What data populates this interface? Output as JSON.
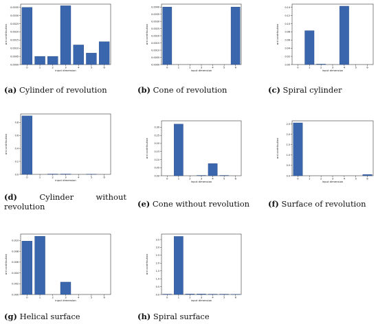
{
  "colors": {
    "bar": "#3a66ad",
    "bar_edge": "#24467e",
    "axis": "#333333",
    "text": "#111111"
  },
  "chart_data": [
    {
      "type": "bar",
      "caption_tag": "(a)",
      "caption_text": "Cylinder of revolution",
      "xlabel": "input dimension",
      "ylabel": "ard contribution",
      "categories": [
        "0",
        "1",
        "2",
        "3",
        "4",
        "5",
        "6"
      ],
      "values": [
        0.0035,
        0.0005,
        0.0005,
        0.0036,
        0.0012,
        0.0007,
        0.0014
      ],
      "ylim": [
        0,
        0.0037
      ],
      "yticks": [
        0.0,
        0.0005,
        0.001,
        0.0015,
        0.002,
        0.0025,
        0.003,
        0.0035
      ],
      "ytick_labels": [
        "0.0000",
        "0.0005",
        "0.0010",
        "0.0015",
        "0.0020",
        "0.0025",
        "0.0030",
        "0.0035"
      ]
    },
    {
      "type": "bar",
      "caption_tag": "(b)",
      "caption_text": "Cone of revolution",
      "xlabel": "input dimension",
      "ylabel": "ard contribution",
      "categories": [
        "0",
        "1",
        "2",
        "3",
        "4",
        "5",
        "6"
      ],
      "values": [
        0.004,
        0.0,
        0.0,
        0.0,
        0.0,
        0.0,
        0.004
      ],
      "ylim": [
        0,
        0.0042
      ],
      "yticks": [
        0.0,
        0.0005,
        0.001,
        0.0015,
        0.002,
        0.0025,
        0.003,
        0.0035,
        0.004
      ],
      "ytick_labels": [
        "0.0000",
        "0.0005",
        "0.0010",
        "0.0015",
        "0.0020",
        "0.0025",
        "0.0030",
        "0.0035",
        "0.0040"
      ]
    },
    {
      "type": "bar",
      "caption_tag": "(c)",
      "caption_text": "Spiral cylinder",
      "xlabel": "input dimension",
      "ylabel": "ard contribution",
      "categories": [
        "0",
        "1",
        "2",
        "3",
        "4",
        "5",
        "6"
      ],
      "values": [
        0.0,
        0.083,
        0.001,
        0.0,
        0.143,
        0.0,
        0.0
      ],
      "ylim": [
        0,
        0.148
      ],
      "yticks": [
        0.0,
        0.02,
        0.04,
        0.06,
        0.08,
        0.1,
        0.12,
        0.14
      ],
      "ytick_labels": [
        "0.00",
        "0.02",
        "0.04",
        "0.06",
        "0.08",
        "0.10",
        "0.12",
        "0.14"
      ]
    },
    {
      "type": "bar",
      "caption_tag": "(d)",
      "caption_text": "Cylinder without revolution",
      "xlabel": "input dimension",
      "ylabel": "ard contribution",
      "categories": [
        "0",
        "1",
        "2",
        "3",
        "4",
        "5",
        "6"
      ],
      "values": [
        0.9,
        0.0,
        0.005,
        0.005,
        0.0,
        0.003,
        0.0
      ],
      "ylim": [
        0,
        0.93
      ],
      "yticks": [
        0.0,
        0.2,
        0.4,
        0.6,
        0.8
      ],
      "ytick_labels": [
        "0.0",
        "0.2",
        "0.4",
        "0.6",
        "0.8"
      ]
    },
    {
      "type": "bar",
      "caption_tag": "(e)",
      "caption_text": "Cone without revolution",
      "xlabel": "input dimension",
      "ylabel": "ard contribution",
      "categories": [
        "0",
        "1",
        "2",
        "3",
        "4",
        "5",
        "6"
      ],
      "values": [
        0.0,
        0.32,
        0.0,
        0.002,
        0.075,
        0.002,
        0.0
      ],
      "ylim": [
        0,
        0.34
      ],
      "yticks": [
        0.0,
        0.05,
        0.1,
        0.15,
        0.2,
        0.25,
        0.3
      ],
      "ytick_labels": [
        "0.00",
        "0.05",
        "0.10",
        "0.15",
        "0.20",
        "0.25",
        "0.30"
      ]
    },
    {
      "type": "bar",
      "caption_tag": "(f)",
      "caption_text": "Surface of revolution",
      "xlabel": "input dimension",
      "ylabel": "ard contribution",
      "categories": [
        "0",
        "1",
        "2",
        "3",
        "4",
        "5",
        "6"
      ],
      "values": [
        2.55,
        0.0,
        0.0,
        0.0,
        0.0,
        0.0,
        0.06
      ],
      "ylim": [
        0,
        2.65
      ],
      "yticks": [
        0.0,
        0.5,
        1.0,
        1.5,
        2.0,
        2.5
      ],
      "ytick_labels": [
        "0.0",
        "0.5",
        "1.0",
        "1.5",
        "2.0",
        "2.5"
      ]
    },
    {
      "type": "bar",
      "caption_tag": "(g)",
      "caption_text": "Helical surface",
      "xlabel": "input dimension",
      "ylabel": "ard contribution",
      "categories": [
        "0",
        "1",
        "2",
        "3",
        "4",
        "5",
        "6"
      ],
      "values": [
        0.0099,
        0.0108,
        0.0,
        0.0023,
        0.0,
        0.0,
        0.0
      ],
      "ylim": [
        0,
        0.0112
      ],
      "yticks": [
        0.0,
        0.002,
        0.004,
        0.006,
        0.008,
        0.01
      ],
      "ytick_labels": [
        "0.000",
        "0.002",
        "0.004",
        "0.006",
        "0.008",
        "0.010"
      ]
    },
    {
      "type": "bar",
      "caption_tag": "(h)",
      "caption_text": "Spiral surface",
      "xlabel": "input dimension",
      "ylabel": "ard contribution",
      "categories": [
        "0",
        "1",
        "2",
        "3",
        "4",
        "5",
        "6"
      ],
      "values": [
        0.02,
        3.7,
        0.03,
        0.03,
        0.02,
        0.02,
        0.01
      ],
      "ylim": [
        0,
        3.85
      ],
      "yticks": [
        0.0,
        0.5,
        1.0,
        1.5,
        2.0,
        2.5,
        3.0,
        3.5
      ],
      "ytick_labels": [
        "0.0",
        "0.5",
        "1.0",
        "1.5",
        "2.0",
        "2.5",
        "3.0",
        "3.5"
      ]
    }
  ]
}
